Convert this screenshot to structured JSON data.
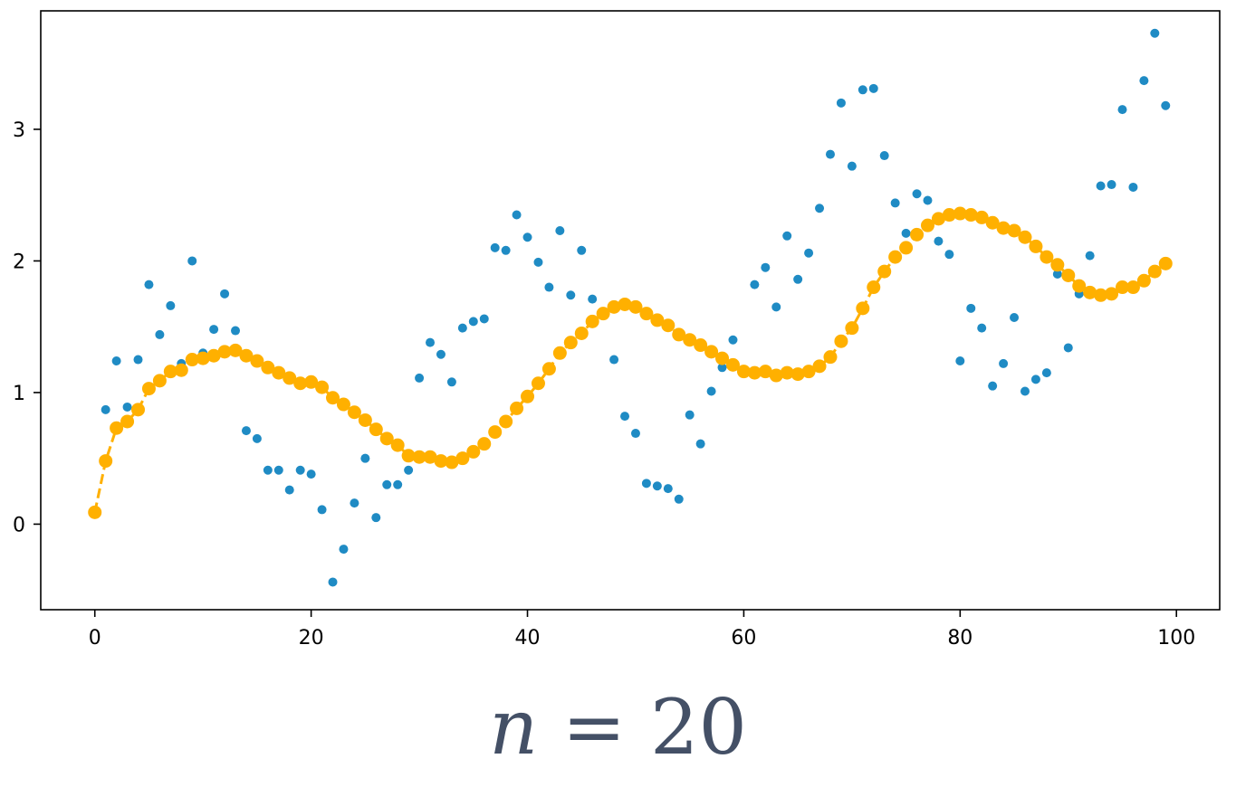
{
  "chart_data": {
    "type": "scatter",
    "xlim": [
      -5,
      104
    ],
    "ylim": [
      -0.65,
      3.9
    ],
    "xticks": [
      0,
      20,
      40,
      60,
      80,
      100
    ],
    "yticks": [
      0,
      1,
      2,
      3
    ],
    "grid": false,
    "legend": "none",
    "series": [
      {
        "kind": "scatter",
        "color": "#1f8bc4",
        "x": [
          1,
          2,
          3,
          4,
          5,
          6,
          7,
          8,
          9,
          10,
          11,
          12,
          13,
          14,
          15,
          16,
          17,
          18,
          19,
          20,
          21,
          22,
          23,
          24,
          25,
          26,
          27,
          28,
          29,
          30,
          31,
          32,
          33,
          34,
          35,
          36,
          37,
          38,
          39,
          40,
          41,
          42,
          43,
          44,
          45,
          46,
          48,
          49,
          50,
          51,
          52,
          53,
          54,
          55,
          56,
          57,
          58,
          59,
          61,
          62,
          63,
          64,
          65,
          66,
          67,
          68,
          69,
          70,
          71,
          72,
          73,
          74,
          75,
          76,
          77,
          78,
          79,
          80,
          81,
          82,
          83,
          84,
          85,
          86,
          87,
          88,
          89,
          90,
          91,
          92,
          93,
          94,
          95,
          96,
          97,
          98,
          99
        ],
        "y": [
          0.87,
          1.24,
          0.89,
          1.25,
          1.82,
          1.44,
          1.66,
          1.22,
          2.0,
          1.3,
          1.48,
          1.75,
          1.47,
          0.71,
          0.65,
          0.41,
          0.41,
          0.26,
          0.41,
          0.38,
          0.11,
          -0.44,
          -0.19,
          0.16,
          0.5,
          0.05,
          0.3,
          0.3,
          0.41,
          1.11,
          1.38,
          1.29,
          1.08,
          1.49,
          1.54,
          1.56,
          2.1,
          2.08,
          2.35,
          2.18,
          1.99,
          1.8,
          2.23,
          1.74,
          2.08,
          1.71,
          1.25,
          0.82,
          0.69,
          0.31,
          0.29,
          0.27,
          0.19,
          0.83,
          0.61,
          1.01,
          1.19,
          1.4,
          1.82,
          1.95,
          1.65,
          2.19,
          1.86,
          2.06,
          2.4,
          2.81,
          3.2,
          2.72,
          3.3,
          3.31,
          2.8,
          2.44,
          2.21,
          2.51,
          2.46,
          2.15,
          2.05,
          1.24,
          1.64,
          1.49,
          1.05,
          1.22,
          1.57,
          1.01,
          1.1,
          1.15,
          1.9,
          1.34,
          1.75,
          2.04,
          2.57,
          2.58,
          3.15,
          2.56,
          3.37,
          3.73,
          3.18
        ]
      },
      {
        "kind": "line-markers",
        "color": "#ffb000",
        "dashed": true,
        "x": [
          0,
          1,
          2,
          3,
          4,
          5,
          6,
          7,
          8,
          9,
          10,
          11,
          12,
          13,
          14,
          15,
          16,
          17,
          18,
          19,
          20,
          21,
          22,
          23,
          24,
          25,
          26,
          27,
          28,
          29,
          30,
          31,
          32,
          33,
          34,
          35,
          36,
          37,
          38,
          39,
          40,
          41,
          42,
          43,
          44,
          45,
          46,
          47,
          48,
          49,
          50,
          51,
          52,
          53,
          54,
          55,
          56,
          57,
          58,
          59,
          60,
          61,
          62,
          63,
          64,
          65,
          66,
          67,
          68,
          69,
          70,
          71,
          72,
          73,
          74,
          75,
          76,
          77,
          78,
          79,
          80,
          81,
          82,
          83,
          84,
          85,
          86,
          87,
          88,
          89,
          90,
          91,
          92,
          93,
          94,
          95,
          96,
          97,
          98,
          99
        ],
        "y": [
          0.09,
          0.48,
          0.73,
          0.78,
          0.87,
          1.03,
          1.09,
          1.16,
          1.17,
          1.25,
          1.26,
          1.28,
          1.31,
          1.32,
          1.28,
          1.24,
          1.19,
          1.15,
          1.11,
          1.07,
          1.08,
          1.04,
          0.96,
          0.91,
          0.85,
          0.79,
          0.72,
          0.65,
          0.6,
          0.52,
          0.51,
          0.51,
          0.48,
          0.47,
          0.5,
          0.55,
          0.61,
          0.7,
          0.78,
          0.88,
          0.97,
          1.07,
          1.18,
          1.3,
          1.38,
          1.45,
          1.54,
          1.6,
          1.65,
          1.67,
          1.65,
          1.6,
          1.55,
          1.51,
          1.44,
          1.4,
          1.36,
          1.31,
          1.26,
          1.21,
          1.16,
          1.15,
          1.16,
          1.13,
          1.15,
          1.14,
          1.16,
          1.2,
          1.27,
          1.39,
          1.49,
          1.64,
          1.8,
          1.92,
          2.03,
          2.1,
          2.2,
          2.27,
          2.32,
          2.35,
          2.36,
          2.35,
          2.33,
          2.29,
          2.25,
          2.23,
          2.18,
          2.11,
          2.03,
          1.97,
          1.89,
          1.81,
          1.76,
          1.74,
          1.75,
          1.8,
          1.8,
          1.85,
          1.92,
          1.98
        ]
      }
    ]
  },
  "caption": {
    "variable": "n",
    "operator": "=",
    "value": "20"
  }
}
